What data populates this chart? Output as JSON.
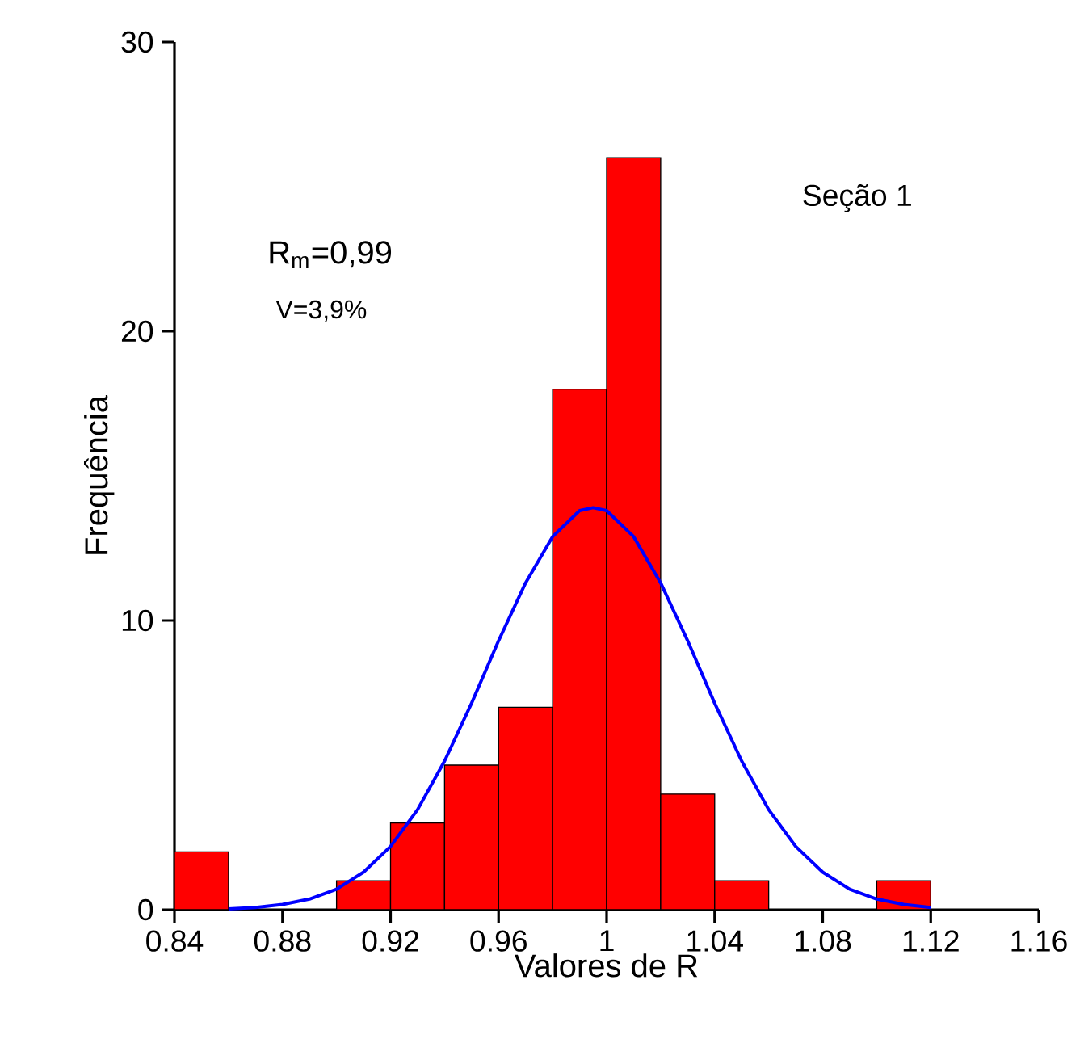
{
  "chart_data": {
    "type": "histogram",
    "xlabel": "Valores de R",
    "ylabel": "Frequência",
    "bins": [
      0.84,
      0.86,
      0.88,
      0.9,
      0.92,
      0.94,
      0.96,
      0.98,
      1.0,
      1.02,
      1.04,
      1.06,
      1.08,
      1.1,
      1.12
    ],
    "values": [
      2,
      0,
      0,
      1,
      3,
      5,
      7,
      18,
      26,
      4,
      1,
      0,
      0,
      1
    ],
    "color": "#ff0000",
    "series": [
      {
        "type": "line",
        "color": "#0000ff",
        "x": [
          0.86,
          0.87,
          0.88,
          0.89,
          0.9,
          0.91,
          0.92,
          0.93,
          0.94,
          0.95,
          0.96,
          0.97,
          0.98,
          0.99,
          0.995,
          1.0,
          1.01,
          1.02,
          1.03,
          1.04,
          1.05,
          1.06,
          1.07,
          1.08,
          1.09,
          1.1,
          1.11,
          1.12
        ],
        "values": [
          0.03,
          0.08,
          0.18,
          0.37,
          0.71,
          1.3,
          2.19,
          3.46,
          5.14,
          7.14,
          9.3,
          11.3,
          12.9,
          13.8,
          13.9,
          13.8,
          12.9,
          11.3,
          9.3,
          7.14,
          5.14,
          3.46,
          2.19,
          1.3,
          0.71,
          0.37,
          0.18,
          0.08
        ]
      }
    ],
    "xlim": [
      0.84,
      1.16
    ],
    "ylim": [
      0,
      30
    ],
    "xticks": [
      0.84,
      0.88,
      0.92,
      0.96,
      1,
      1.04,
      1.08,
      1.12,
      1.16
    ],
    "yticks": [
      0,
      10,
      20,
      30
    ],
    "annotations": [
      "Seção 1",
      "R$_{m}$=0,99",
      "V=3,9%"
    ]
  }
}
